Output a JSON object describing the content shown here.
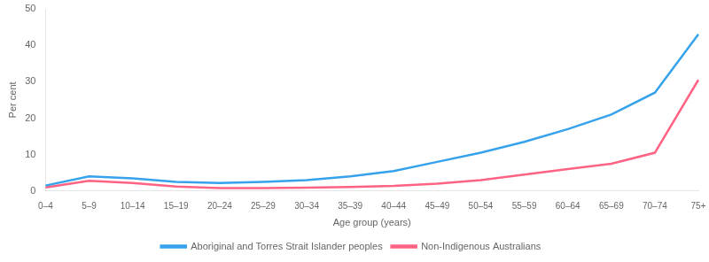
{
  "chart_data": {
    "type": "line",
    "categories": [
      "0–4",
      "5–9",
      "10–14",
      "15–19",
      "20–24",
      "25–29",
      "30–34",
      "35–39",
      "40–44",
      "45–49",
      "50–54",
      "55–59",
      "60–64",
      "65–69",
      "70–74",
      "75+"
    ],
    "series": [
      {
        "name": "Aboriginal and Torres Strait Islander peoples",
        "values": [
          1.5,
          4.0,
          3.5,
          2.5,
          2.2,
          2.5,
          3.0,
          4.0,
          5.5,
          8.0,
          10.5,
          13.5,
          17.0,
          21.0,
          27.0,
          43.0
        ]
      },
      {
        "name": "Non-Indigenous Australians",
        "values": [
          1.0,
          2.8,
          2.2,
          1.2,
          0.8,
          0.8,
          0.9,
          1.1,
          1.4,
          2.0,
          3.0,
          4.5,
          6.0,
          7.5,
          10.5,
          30.5
        ]
      }
    ],
    "xlabel": "Age group (years)",
    "ylabel": "Per cent",
    "ylim": [
      0,
      50
    ],
    "yticks": [
      0,
      10,
      20,
      30,
      40,
      50
    ],
    "grid": false,
    "legend": "bottom"
  }
}
